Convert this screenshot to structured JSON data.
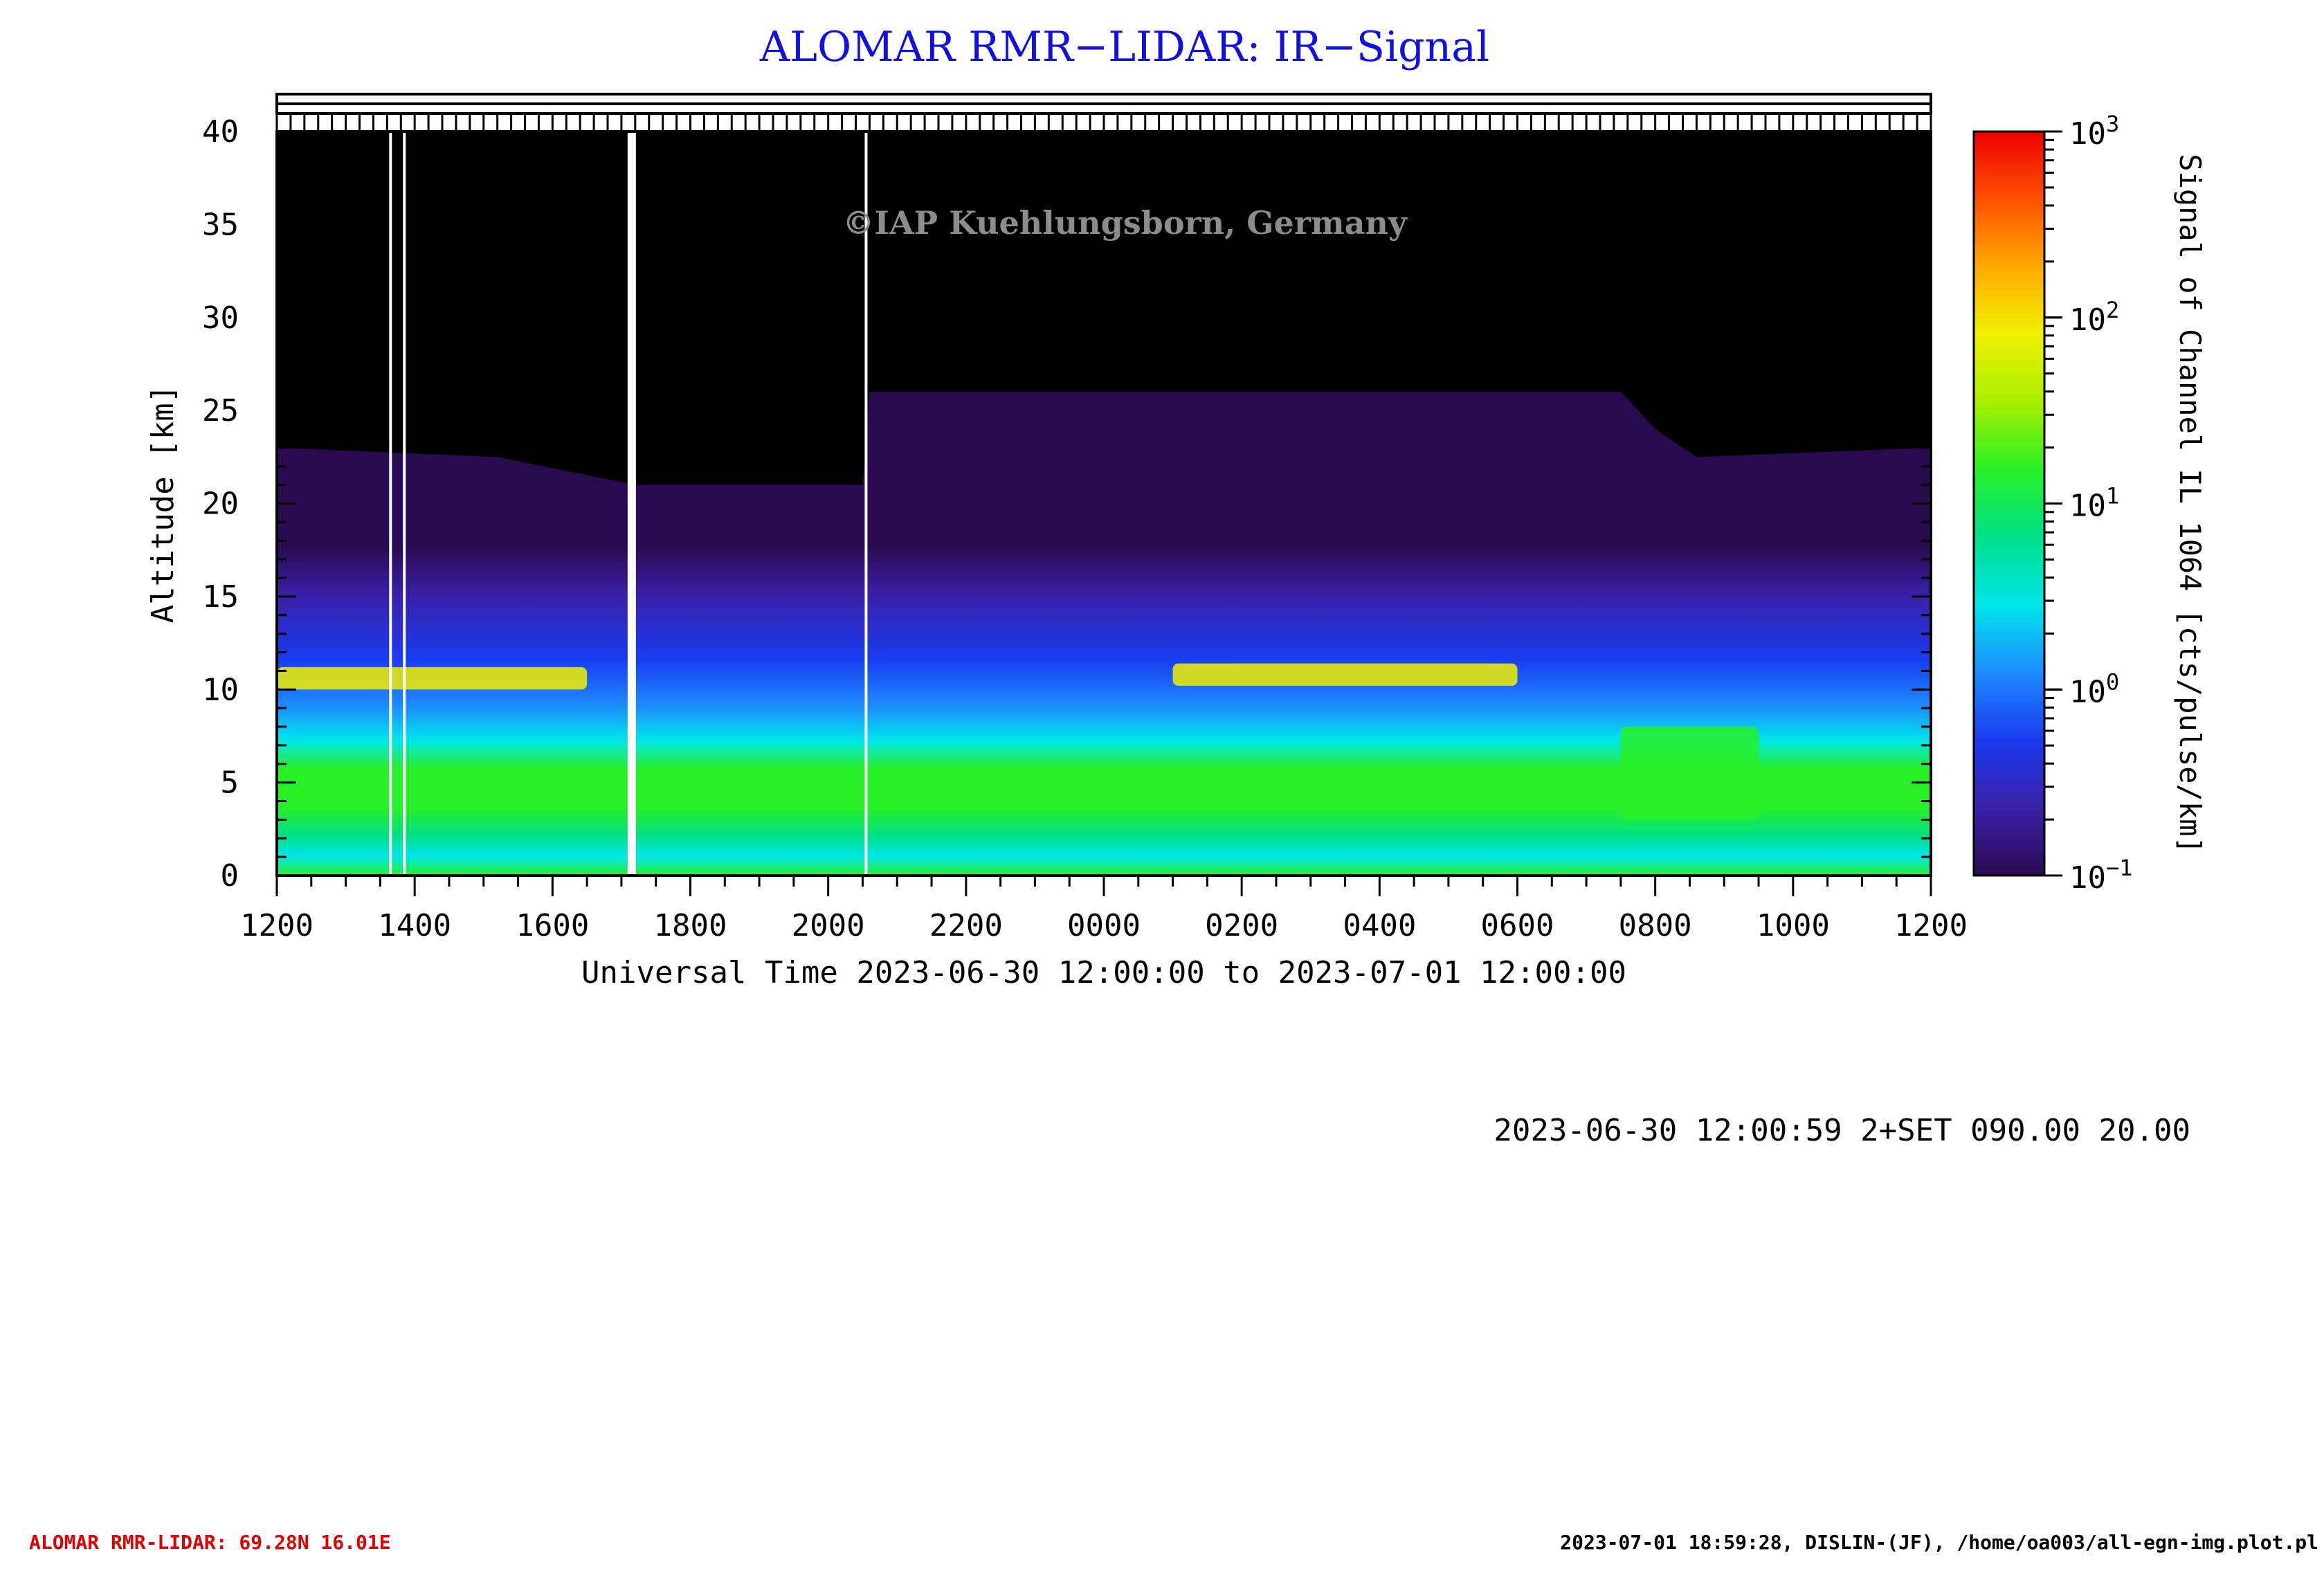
{
  "title": "ALOMAR RMR−LIDAR: IR−Signal",
  "watermark": "©IAP Kuehlungsborn, Germany",
  "footer_left": "ALOMAR RMR-LIDAR: 69.28N 16.01E",
  "footer_right": "2023-07-01 18:59:28, DISLIN-(JF), /home/oa003/all-egn-img.plot.pl",
  "run_info": "2023-06-30 12:00:59 2+SET 090.00 20.00",
  "colors": {
    "title": "#1010e0",
    "footer_left": "#e00000",
    "watermark": "#8c8c8c",
    "axis": "#000000"
  },
  "chart_data": {
    "type": "heatmap",
    "title": "ALOMAR RMR−LIDAR: IR−Signal",
    "xlabel": "Universal Time 2023-06-30 12:00:00 to 2023-07-01 12:00:00",
    "ylabel": "Altitude [km]",
    "colorbar_label": "Signal of Channel IL 1064 [cts/pulse/km]",
    "x_tick_labels": [
      "1200",
      "1400",
      "1600",
      "1800",
      "2000",
      "2200",
      "0000",
      "0200",
      "0400",
      "0600",
      "0800",
      "1000",
      "1200"
    ],
    "xlim_hours": [
      0,
      24
    ],
    "y_ticks": [
      0,
      5,
      10,
      15,
      20,
      25,
      30,
      35,
      40
    ],
    "ylim": [
      0,
      40
    ],
    "colorbar_ticks": [
      {
        "base": "10",
        "exp": "3",
        "log": 3
      },
      {
        "base": "10",
        "exp": "2",
        "log": 2
      },
      {
        "base": "10",
        "exp": "1",
        "log": 1
      },
      {
        "base": "10",
        "exp": "0",
        "log": 0
      },
      {
        "base": "10",
        "exp": "−1",
        "log": -1
      }
    ],
    "clim_log": [
      -1,
      3
    ],
    "colormap": [
      "#2a0a50",
      "#3a20a8",
      "#1a3af0",
      "#1e8cff",
      "#00e6ea",
      "#00e08a",
      "#28f028",
      "#a8f000",
      "#f0f000",
      "#ffaa00",
      "#ff5000",
      "#ee0000"
    ],
    "signal_top_km": [
      {
        "t": 0.0,
        "alt": 23.0
      },
      {
        "t": 3.2,
        "alt": 22.5
      },
      {
        "t": 5.2,
        "alt": 21.0
      },
      {
        "t": 8.5,
        "alt": 21.0
      },
      {
        "t": 8.6,
        "alt": 26.0
      },
      {
        "t": 19.5,
        "alt": 26.0
      },
      {
        "t": 20.0,
        "alt": 24.0
      },
      {
        "t": 20.6,
        "alt": 22.5
      },
      {
        "t": 24.0,
        "alt": 23.0
      }
    ],
    "layers": [
      {
        "name": "cirrus",
        "t_start": 0.0,
        "t_end": 4.5,
        "alt_bottom": 10.0,
        "alt_top": 11.2,
        "log_signal": 2.0
      },
      {
        "name": "cirrus",
        "t_start": 13.0,
        "t_end": 18.0,
        "alt_bottom": 10.2,
        "alt_top": 11.4,
        "log_signal": 1.8
      },
      {
        "name": "cloud",
        "t_start": 19.5,
        "t_end": 21.5,
        "alt_bottom": 3.0,
        "alt_top": 8.0,
        "log_signal": 1.3
      }
    ],
    "data_gaps_hours": [
      1.65,
      1.85,
      5.15,
      8.55
    ],
    "thick_gap_hours": 5.15
  }
}
